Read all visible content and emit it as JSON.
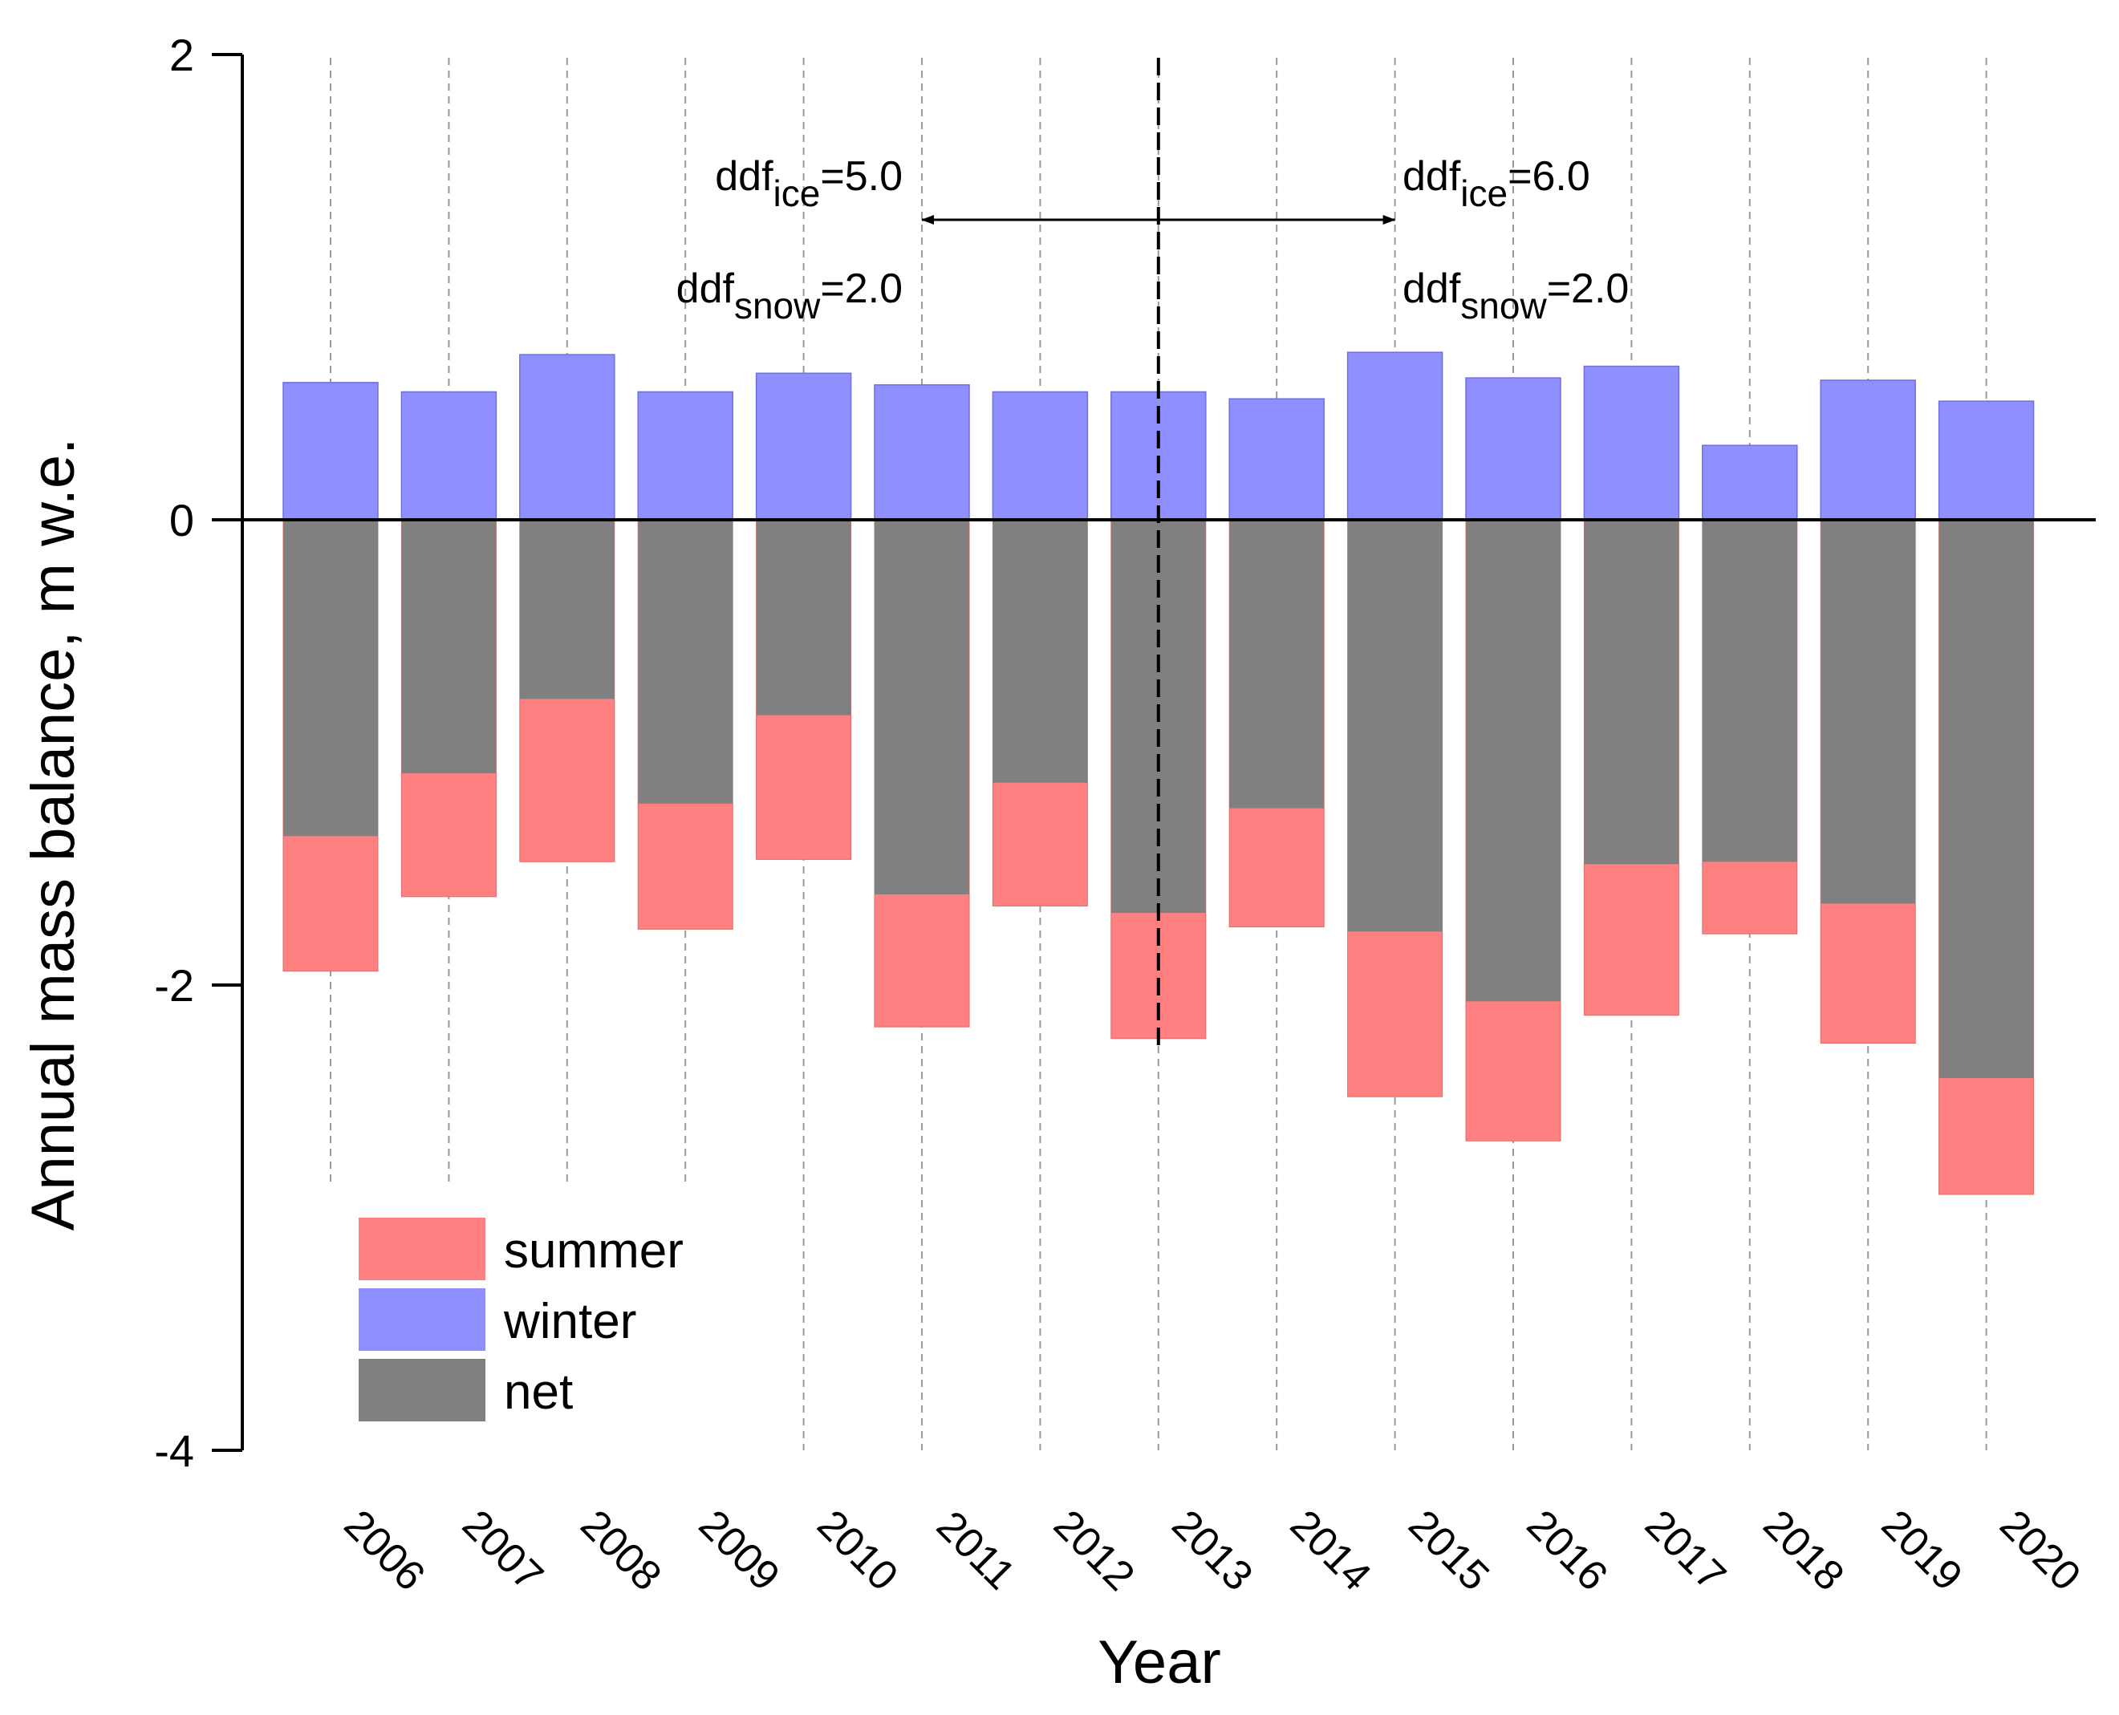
{
  "chart_data": {
    "type": "bar",
    "title": "",
    "xlabel": "Year",
    "ylabel": "Annual mass balance, m w.e.",
    "ylim": [
      -4,
      2
    ],
    "yticks": [
      "2",
      "0",
      "-2",
      "-4"
    ],
    "categories": [
      "2006",
      "2007",
      "2008",
      "2009",
      "2010",
      "2011",
      "2012",
      "2013",
      "2014",
      "2015",
      "2016",
      "2017",
      "2018",
      "2019",
      "2020"
    ],
    "series": [
      {
        "name": "summer",
        "color": "#ff8080",
        "values": [
          -1.94,
          -1.62,
          -1.47,
          -1.76,
          -1.46,
          -2.18,
          -1.66,
          -2.23,
          -1.75,
          -2.48,
          -2.67,
          -2.13,
          -1.78,
          -2.25,
          -2.9
        ]
      },
      {
        "name": "winter",
        "color": "#8f8fff",
        "values": [
          0.59,
          0.55,
          0.71,
          0.55,
          0.63,
          0.58,
          0.55,
          0.55,
          0.52,
          0.72,
          0.61,
          0.66,
          0.32,
          0.6,
          0.51
        ]
      },
      {
        "name": "net",
        "color": "#808080",
        "values": [
          -1.36,
          -1.09,
          -0.77,
          -1.22,
          -0.84,
          -1.61,
          -1.13,
          -1.69,
          -1.24,
          -1.77,
          -2.07,
          -1.48,
          -1.47,
          -1.65,
          -2.4
        ]
      }
    ],
    "legend": {
      "position": "lower-left",
      "entries": [
        "summer",
        "winter",
        "net"
      ]
    },
    "grid": "vertical dashed lines at each year",
    "divider_year": "2013",
    "arrow_from_year": "2011",
    "arrow_to_year": "2015",
    "annotations": {
      "left": {
        "ice_main": "ddf",
        "ice_sub": "ice",
        "ice_val": "=5.0",
        "snow_main": "ddf",
        "snow_sub": "snow",
        "snow_val": "=2.0"
      },
      "right": {
        "ice_main": "ddf",
        "ice_sub": "ice",
        "ice_val": "=6.0",
        "snow_main": "ddf",
        "snow_sub": "snow",
        "snow_val": "=2.0"
      }
    }
  }
}
